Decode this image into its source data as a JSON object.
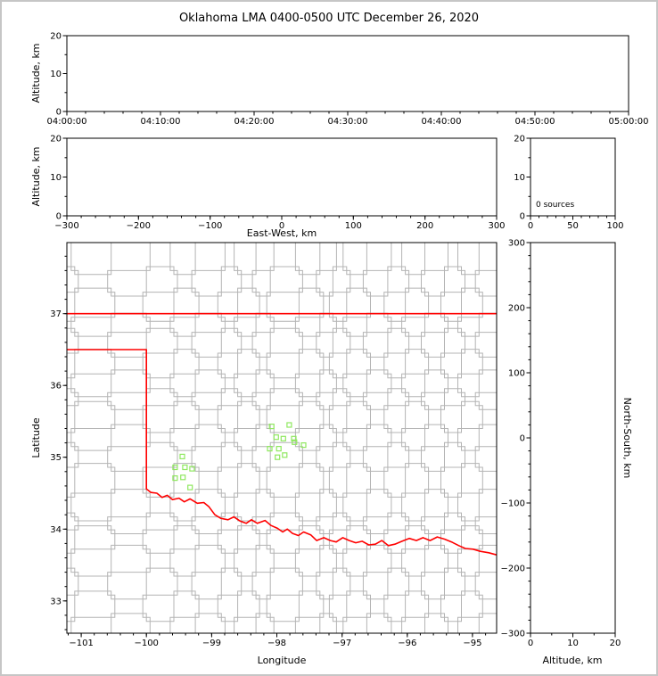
{
  "title": "Oklahoma LMA 0400-0500 UTC December 26, 2020",
  "colors": {
    "axis": "#000000",
    "county_line": "#b4b4b4",
    "state_border": "#ff0000",
    "station_marker": "#90e860",
    "background": "#ffffff",
    "window_frame": "#c6c6c6"
  },
  "chart_data": [
    {
      "id": "time_height",
      "type": "scatter",
      "panel": "altitude-vs-time",
      "ylabel": "Altitude, km",
      "xlim": [
        0,
        60
      ],
      "xticks": [
        0,
        10,
        20,
        30,
        40,
        50,
        60
      ],
      "xtick_labels": [
        "04:00:00",
        "04:10:00",
        "04:20:00",
        "04:30:00",
        "04:40:00",
        "04:50:00",
        "05:00:00"
      ],
      "x_minor_step": 2,
      "ylim": [
        0,
        20
      ],
      "yticks": [
        0,
        10,
        20
      ],
      "y_minor_step": 5,
      "points": []
    },
    {
      "id": "ew_height",
      "type": "scatter",
      "panel": "altitude-vs-east-west",
      "xlabel": "East-West, km",
      "ylabel": "Altitude, km",
      "xlim": [
        -300,
        300
      ],
      "xticks": [
        -300,
        -200,
        -100,
        0,
        100,
        200,
        300
      ],
      "x_minor_step": 20,
      "ylim": [
        0,
        20
      ],
      "yticks": [
        0,
        10,
        20
      ],
      "y_minor_step": 5,
      "points": []
    },
    {
      "id": "alt_hist",
      "type": "bar",
      "panel": "altitude-histogram",
      "annotation": "0 sources",
      "xlim": [
        0,
        100
      ],
      "xticks": [
        0,
        50,
        100
      ],
      "x_minor_step": 10,
      "ylim": [
        0,
        20
      ],
      "yticks": [
        0,
        10,
        20
      ],
      "y_minor_step": 5,
      "values": []
    },
    {
      "id": "plan_view",
      "type": "scatter",
      "panel": "plan-view-map",
      "xlabel": "Longitude",
      "ylabel": "Latitude",
      "xlim": [
        -101.22,
        -94.63
      ],
      "xticks": [
        -101,
        -100,
        -99,
        -98,
        -97,
        -96,
        -95
      ],
      "x_minor_step": 0.2,
      "ylim": [
        32.55,
        37.99
      ],
      "yticks": [
        33,
        34,
        35,
        36,
        37
      ],
      "y_minor_step": 0.2,
      "stations": [
        [
          -99.45,
          35.01
        ],
        [
          -99.56,
          34.86
        ],
        [
          -99.41,
          34.86
        ],
        [
          -99.3,
          34.84
        ],
        [
          -99.56,
          34.71
        ],
        [
          -99.44,
          34.72
        ],
        [
          -99.33,
          34.58
        ],
        [
          -98.08,
          35.43
        ],
        [
          -97.81,
          35.45
        ],
        [
          -98.01,
          35.28
        ],
        [
          -97.9,
          35.26
        ],
        [
          -97.74,
          35.26
        ],
        [
          -98.11,
          35.12
        ],
        [
          -97.97,
          35.12
        ],
        [
          -97.73,
          35.21
        ],
        [
          -97.59,
          35.17
        ],
        [
          -97.99,
          35.0
        ],
        [
          -97.88,
          35.03
        ]
      ],
      "state_border": [
        [
          [
            -101.22,
            37.0
          ],
          [
            -94.63,
            37.0
          ]
        ],
        [
          [
            -101.22,
            36.5
          ],
          [
            -100.0,
            36.5
          ],
          [
            -100.0,
            34.56
          ],
          [
            -99.93,
            34.51
          ],
          [
            -99.84,
            34.5
          ],
          [
            -99.76,
            34.44
          ],
          [
            -99.68,
            34.47
          ],
          [
            -99.6,
            34.41
          ],
          [
            -99.5,
            34.43
          ],
          [
            -99.42,
            34.38
          ],
          [
            -99.33,
            34.42
          ],
          [
            -99.22,
            34.36
          ],
          [
            -99.12,
            34.37
          ],
          [
            -99.04,
            34.31
          ],
          [
            -98.95,
            34.2
          ],
          [
            -98.86,
            34.15
          ],
          [
            -98.75,
            34.13
          ],
          [
            -98.66,
            34.17
          ],
          [
            -98.56,
            34.11
          ],
          [
            -98.47,
            34.08
          ],
          [
            -98.39,
            34.13
          ],
          [
            -98.3,
            34.08
          ],
          [
            -98.18,
            34.12
          ],
          [
            -98.09,
            34.05
          ],
          [
            -97.99,
            34.01
          ],
          [
            -97.91,
            33.96
          ],
          [
            -97.84,
            34.0
          ],
          [
            -97.76,
            33.94
          ],
          [
            -97.67,
            33.91
          ],
          [
            -97.59,
            33.96
          ],
          [
            -97.48,
            33.92
          ],
          [
            -97.39,
            33.84
          ],
          [
            -97.28,
            33.88
          ],
          [
            -97.18,
            33.84
          ],
          [
            -97.09,
            33.82
          ],
          [
            -96.99,
            33.88
          ],
          [
            -96.89,
            33.84
          ],
          [
            -96.79,
            33.81
          ],
          [
            -96.69,
            33.83
          ],
          [
            -96.59,
            33.78
          ],
          [
            -96.49,
            33.79
          ],
          [
            -96.39,
            33.84
          ],
          [
            -96.29,
            33.77
          ],
          [
            -96.19,
            33.79
          ],
          [
            -96.08,
            33.83
          ],
          [
            -95.97,
            33.87
          ],
          [
            -95.86,
            33.84
          ],
          [
            -95.76,
            33.88
          ],
          [
            -95.65,
            33.84
          ],
          [
            -95.54,
            33.89
          ],
          [
            -95.43,
            33.86
          ],
          [
            -95.32,
            33.82
          ],
          [
            -95.21,
            33.77
          ],
          [
            -95.11,
            33.73
          ],
          [
            -94.99,
            33.72
          ],
          [
            -94.88,
            33.69
          ],
          [
            -94.75,
            33.67
          ],
          [
            -94.63,
            33.64
          ]
        ]
      ],
      "county_grid": {
        "v": [
          -101.1,
          -100.54,
          -100.0,
          -99.58,
          -99.25,
          -98.85,
          -98.6,
          -98.32,
          -98.1,
          -97.66,
          -97.34,
          -97.14,
          -96.93,
          -96.62,
          -96.3,
          -96.03,
          -95.73,
          -95.43,
          -95.17,
          -94.9
        ],
        "h": [
          32.77,
          33.08,
          33.4,
          33.72,
          33.99,
          34.17,
          34.5,
          34.86,
          35.15,
          35.4,
          35.72,
          35.9,
          36.16,
          36.45,
          36.74,
          36.95,
          37.3,
          37.6
        ]
      }
    },
    {
      "id": "ns_height",
      "type": "scatter",
      "panel": "north-south-vs-altitude",
      "xlabel": "Altitude, km",
      "ylabel": "North-South, km",
      "xlim": [
        0,
        20
      ],
      "xticks": [
        0,
        10,
        20
      ],
      "x_minor_step": 5,
      "ylim": [
        -300,
        300
      ],
      "yticks": [
        -300,
        -200,
        -100,
        0,
        100,
        200,
        300
      ],
      "y_minor_step": 20,
      "points": []
    }
  ]
}
